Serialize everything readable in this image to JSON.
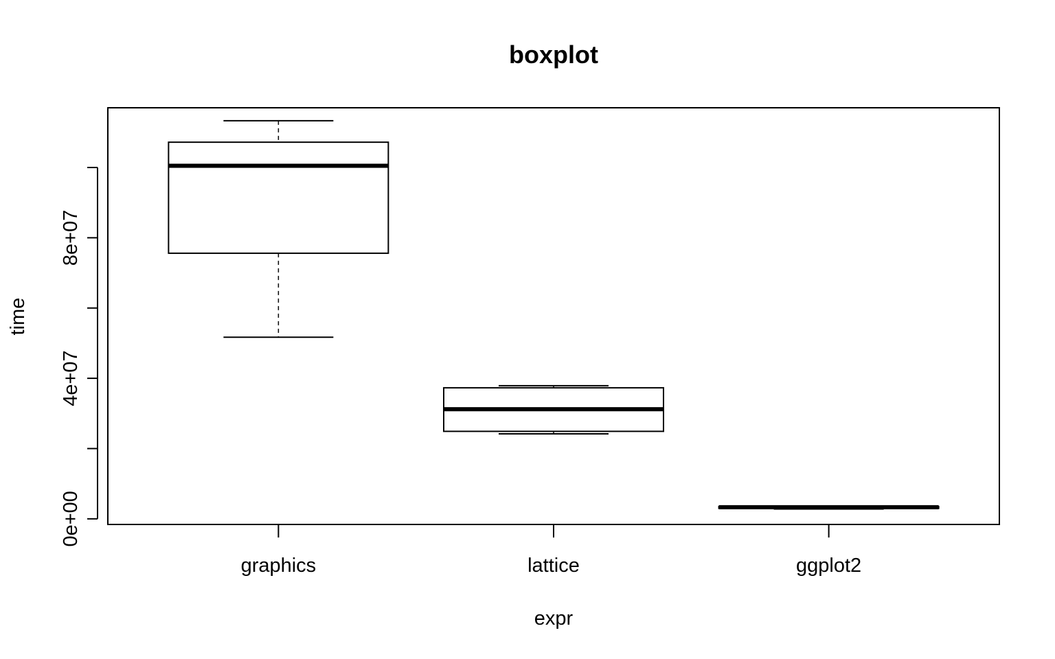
{
  "chart_data": {
    "type": "boxplot",
    "title": "boxplot",
    "xlabel": "expr",
    "ylabel": "time",
    "categories": [
      "graphics",
      "lattice",
      "ggplot2"
    ],
    "y_ticks": [
      0,
      20000000,
      40000000,
      60000000,
      80000000,
      100000000
    ],
    "y_tick_labels": [
      "0e+00",
      "",
      "4e+07",
      "",
      "8e+07",
      ""
    ],
    "ylim": [
      -1600000,
      117000000
    ],
    "grid": false,
    "legend": "none",
    "boxes": [
      {
        "name": "graphics",
        "whisker_low": 51700000,
        "q1": 75600000,
        "median": 100500000,
        "q3": 107200000,
        "whisker_high": 113300000
      },
      {
        "name": "lattice",
        "whisker_low": 24200000,
        "q1": 24900000,
        "median": 31200000,
        "q3": 37300000,
        "whisker_high": 37900000
      },
      {
        "name": "ggplot2",
        "whisker_low": 2800000,
        "q1": 3000000,
        "median": 3300000,
        "q3": 3500000,
        "whisker_high": 3600000
      }
    ]
  }
}
